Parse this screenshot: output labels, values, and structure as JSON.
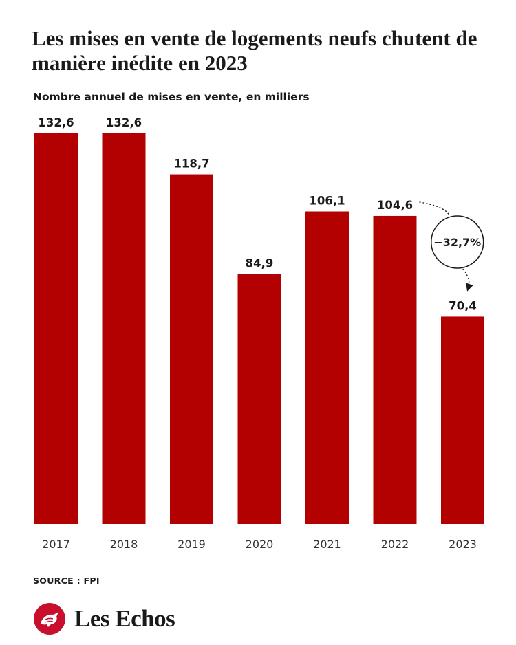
{
  "title": "Les mises en vente de logements neufs chutent de manière inédite en 2023",
  "subtitle": "Nombre annuel de mises en vente, en milliers",
  "source": "SOURCE : FPI",
  "logo_text": "Les Echos",
  "bar_color": "#b30000",
  "chart_data": {
    "type": "bar",
    "categories": [
      "2017",
      "2018",
      "2019",
      "2020",
      "2021",
      "2022",
      "2023"
    ],
    "values": [
      132.6,
      132.6,
      118.7,
      84.9,
      106.1,
      104.6,
      70.4
    ],
    "labels": [
      "132,6",
      "132,6",
      "118,7",
      "84,9",
      "106,1",
      "104,6",
      "70,4"
    ],
    "ylabel": "Nombre annuel de mises en vente, en milliers",
    "ylim": [
      0,
      132.6
    ],
    "grid": false,
    "annotation": {
      "text": "−32,7%",
      "from": "2022",
      "to": "2023"
    }
  }
}
